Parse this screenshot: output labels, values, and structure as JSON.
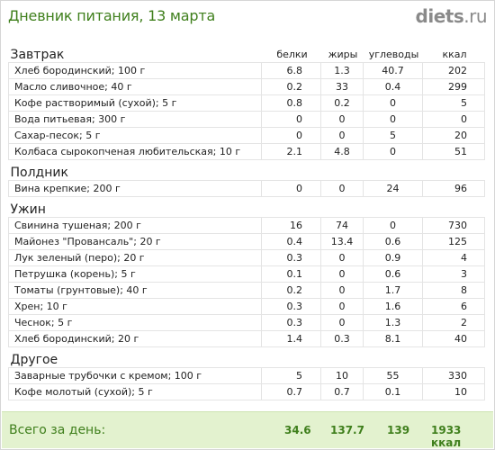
{
  "header": {
    "title": "Дневник питания, 13 марта",
    "logo": {
      "main": "diets",
      "suffix": ".ru"
    }
  },
  "columns": {
    "protein": "белки",
    "fat": "жиры",
    "carbs": "углеводы",
    "kcal": "ккал"
  },
  "sections": [
    {
      "name": "Завтрак",
      "items": [
        {
          "name": "Хлеб бородинский; 100 г",
          "protein": "6.8",
          "fat": "1.3",
          "carbs": "40.7",
          "kcal": "202"
        },
        {
          "name": "Масло сливочное; 40 г",
          "protein": "0.2",
          "fat": "33",
          "carbs": "0.4",
          "kcal": "299"
        },
        {
          "name": "Кофе растворимый (сухой); 5 г",
          "protein": "0.8",
          "fat": "0.2",
          "carbs": "0",
          "kcal": "5"
        },
        {
          "name": "Вода питьевая; 300 г",
          "protein": "0",
          "fat": "0",
          "carbs": "0",
          "kcal": "0"
        },
        {
          "name": "Сахар-песок; 5 г",
          "protein": "0",
          "fat": "0",
          "carbs": "5",
          "kcal": "20"
        },
        {
          "name": "Колбаса сырокопченая любительская; 10 г",
          "protein": "2.1",
          "fat": "4.8",
          "carbs": "0",
          "kcal": "51"
        }
      ]
    },
    {
      "name": "Полдник",
      "items": [
        {
          "name": "Вина крепкие; 200 г",
          "protein": "0",
          "fat": "0",
          "carbs": "24",
          "kcal": "96"
        }
      ]
    },
    {
      "name": "Ужин",
      "items": [
        {
          "name": "Свинина тушеная; 200 г",
          "protein": "16",
          "fat": "74",
          "carbs": "0",
          "kcal": "730"
        },
        {
          "name": "Майонез \"Провансаль\"; 20 г",
          "protein": "0.4",
          "fat": "13.4",
          "carbs": "0.6",
          "kcal": "125"
        },
        {
          "name": "Лук зеленый (перо); 20 г",
          "protein": "0.3",
          "fat": "0",
          "carbs": "0.9",
          "kcal": "4"
        },
        {
          "name": "Петрушка (корень); 5 г",
          "protein": "0.1",
          "fat": "0",
          "carbs": "0.6",
          "kcal": "3"
        },
        {
          "name": "Томаты (грунтовые); 40 г",
          "protein": "0.2",
          "fat": "0",
          "carbs": "1.7",
          "kcal": "8"
        },
        {
          "name": "Хрен; 10 г",
          "protein": "0.3",
          "fat": "0",
          "carbs": "1.6",
          "kcal": "6"
        },
        {
          "name": "Чеснок; 5 г",
          "protein": "0.3",
          "fat": "0",
          "carbs": "1.3",
          "kcal": "2"
        },
        {
          "name": "Хлеб бородинский; 20 г",
          "protein": "1.4",
          "fat": "0.3",
          "carbs": "8.1",
          "kcal": "40"
        }
      ]
    },
    {
      "name": "Другое",
      "items": [
        {
          "name": "Заварные трубочки с кремом; 100 г",
          "protein": "5",
          "fat": "10",
          "carbs": "55",
          "kcal": "330"
        },
        {
          "name": "Кофе молотый (сухой); 5 г",
          "protein": "0.7",
          "fat": "0.7",
          "carbs": "0.1",
          "kcal": "10"
        }
      ]
    }
  ],
  "total": {
    "label": "Всего за день:",
    "protein": "34.6",
    "fat": "137.7",
    "carbs": "139",
    "kcal": "1933 ккал"
  },
  "colors": {
    "accent": "#3f7f1c",
    "total_bg": "#e3f2cf",
    "logo_accent": "#f29400"
  }
}
